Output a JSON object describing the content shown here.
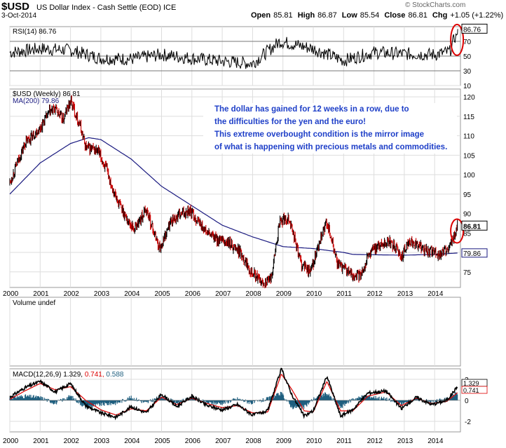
{
  "header": {
    "symbol": "$USD",
    "name": "US Dollar Index - Cash Settle (EOD)  ICE",
    "date": "3-Oct-2014",
    "open_label": "Open",
    "open": "85.81",
    "high_label": "High",
    "high": "86.87",
    "low_label": "Low",
    "low": "85.54",
    "close_label": "Close",
    "close": "86.81",
    "chg_label": "Chg",
    "chg": "+1.05 (+1.22%)",
    "copyright": "© StockCharts.com"
  },
  "annotation": {
    "lines": [
      "The dollar has gained for 12 weeks in a row, due to",
      "the difficulties for the yen and the euro!",
      "This extreme overbought condition is the mirror image",
      "of what is happening with precious metals and commodities."
    ]
  },
  "colors": {
    "price_up": "#000000",
    "price_down": "#cc0000",
    "ma": "#1a1a80",
    "macd": "#000000",
    "signal": "#dd0000",
    "hist": "#1f5f7f",
    "annotation_text": "#1e3fc8",
    "highlight": "#dd0000"
  },
  "chart_data": [
    {
      "type": "line",
      "panel": "rsi",
      "legend": "RSI(14) 86.76",
      "last_value": "86.76",
      "ylim": [
        10,
        90
      ],
      "y_ticks": [
        "10",
        "30",
        "50",
        "70"
      ],
      "reference_lines": [
        30,
        50,
        70
      ],
      "series": [
        {
          "name": "RSI(14)",
          "x": [
            2000,
            2001,
            2002,
            2003,
            2004,
            2005,
            2006,
            2007,
            2008,
            2008.9,
            2010,
            2011,
            2012,
            2013,
            2014,
            2014.5,
            2014.76
          ],
          "values": [
            55,
            60,
            58,
            47,
            46,
            52,
            47,
            43,
            40,
            70,
            60,
            44,
            55,
            53,
            52,
            56,
            86.76
          ]
        }
      ]
    },
    {
      "type": "line",
      "panel": "price",
      "legend_price": "$USD (Weekly) 86.81",
      "legend_ma": "MA(200) 79.86",
      "last_value": "86.81",
      "ma_last": "79.86",
      "ylim": [
        71,
        122
      ],
      "y_ticks": [
        "75",
        "80",
        "85",
        "90",
        "95",
        "100",
        "105",
        "110",
        "115",
        "120"
      ],
      "x_tick_labels": [
        "2000",
        "2001",
        "2002",
        "2003",
        "2004",
        "2005",
        "2006",
        "2007",
        "2008",
        "2009",
        "2010",
        "2011",
        "2012",
        "2013",
        "2014"
      ],
      "series": [
        {
          "name": "$USD (Weekly)",
          "x": [
            2000,
            2000.5,
            2001,
            2001.3,
            2001.5,
            2001.75,
            2002,
            2002.3,
            2002.5,
            2002.9,
            2003.2,
            2003.5,
            2003.9,
            2004.1,
            2004.5,
            2004.8,
            2004.95,
            2005.3,
            2005.9,
            2006.2,
            2006.5,
            2006.9,
            2007.3,
            2007.6,
            2007.9,
            2008.3,
            2008.6,
            2008.9,
            2009.2,
            2009.6,
            2009.9,
            2010.45,
            2010.8,
            2011.3,
            2011.55,
            2011.8,
            2012.0,
            2012.5,
            2012.9,
            2013.2,
            2013.6,
            2013.9,
            2014.2,
            2014.5,
            2014.76
          ],
          "values": [
            98,
            108,
            112,
            116,
            117,
            114,
            119,
            113,
            107,
            106,
            101,
            94,
            88,
            86,
            91,
            84,
            81,
            88,
            91,
            88,
            85,
            83,
            82,
            80,
            76,
            72,
            73,
            88,
            89,
            77,
            75,
            88,
            77,
            74,
            74,
            79,
            81,
            83,
            79,
            83,
            81,
            80,
            79.5,
            81.5,
            86.81
          ]
        },
        {
          "name": "MA(200)",
          "x": [
            2000,
            2001,
            2002,
            2002.6,
            2003,
            2004,
            2005,
            2006,
            2007,
            2008,
            2009,
            2010,
            2011,
            2011.3,
            2012,
            2013,
            2014,
            2014.76
          ],
          "values": [
            95,
            103,
            108,
            109.5,
            109,
            104,
            97,
            92,
            87,
            84,
            81.5,
            81,
            80,
            79.5,
            79.4,
            79.3,
            79.5,
            79.86
          ]
        }
      ]
    },
    {
      "type": "bar",
      "panel": "volume",
      "legend": "Volume undef",
      "series": []
    },
    {
      "type": "line",
      "panel": "macd",
      "legend_prefix": "MACD(12,26,9)",
      "macd_value": "1.329",
      "signal_value": "0.741",
      "hist_value": "0.588",
      "ylim": [
        -3,
        3
      ],
      "y_ticks": [
        "-2",
        "0",
        "2"
      ],
      "x_tick_labels": [
        "2000",
        "2001",
        "2002",
        "2003",
        "2004",
        "2005",
        "2006",
        "2007",
        "2008",
        "2009",
        "2010",
        "2011",
        "2012",
        "2013",
        "2014"
      ],
      "series": [
        {
          "name": "MACD",
          "x": [
            2000,
            2000.5,
            2001,
            2001.5,
            2002,
            2002.5,
            2003,
            2003.5,
            2004,
            2004.5,
            2005,
            2005.5,
            2006,
            2006.5,
            2007,
            2007.5,
            2008,
            2008.5,
            2008.95,
            2009.3,
            2009.7,
            2010,
            2010.45,
            2010.9,
            2011.3,
            2011.8,
            2012.4,
            2012.9,
            2013.4,
            2013.9,
            2014.4,
            2014.76
          ],
          "values": [
            0.3,
            1.2,
            1.8,
            0.8,
            1.6,
            -0.5,
            -1.2,
            -1.6,
            -0.6,
            -1.2,
            0.6,
            -0.6,
            0.4,
            -0.5,
            -0.9,
            -0.4,
            -1.4,
            -1.0,
            3.0,
            0.5,
            -1.5,
            -1.0,
            2.3,
            -1.5,
            -0.9,
            0.7,
            0.9,
            -0.8,
            0.3,
            -0.4,
            0.0,
            1.329
          ]
        },
        {
          "name": "Signal",
          "x": [
            2000,
            2000.5,
            2001,
            2001.5,
            2002,
            2002.5,
            2003,
            2003.5,
            2004,
            2004.5,
            2005,
            2005.5,
            2006,
            2006.5,
            2007,
            2007.5,
            2008,
            2008.5,
            2008.95,
            2009.3,
            2009.7,
            2010,
            2010.45,
            2010.9,
            2011.3,
            2011.8,
            2012.4,
            2012.9,
            2013.4,
            2013.9,
            2014.4,
            2014.76
          ],
          "values": [
            0.1,
            0.9,
            1.6,
            1.0,
            1.3,
            0.0,
            -0.9,
            -1.4,
            -0.8,
            -1.0,
            0.3,
            -0.4,
            0.2,
            -0.3,
            -0.7,
            -0.5,
            -1.2,
            -1.1,
            2.5,
            1.0,
            -1.0,
            -1.1,
            1.8,
            -1.0,
            -1.0,
            0.4,
            0.8,
            -0.5,
            0.2,
            -0.3,
            -0.1,
            0.741
          ]
        }
      ]
    }
  ]
}
